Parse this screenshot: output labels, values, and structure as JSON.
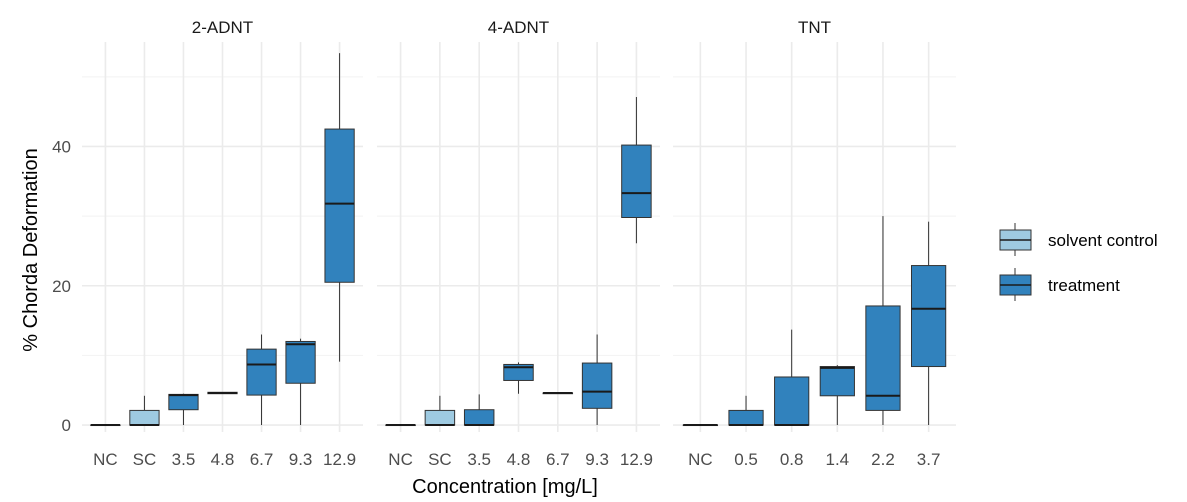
{
  "chart_data": {
    "type": "boxplot",
    "xlabel": "Concentration [mg/L]",
    "ylabel": "% Chorda Deformation",
    "ylim": [
      -1,
      55
    ],
    "yticks": [
      0,
      20,
      40
    ],
    "grid": true,
    "legend_position": "right",
    "colors": {
      "solvent control": "#9ecae1",
      "treatment": "#3182bd"
    },
    "legend": [
      {
        "label": "solvent control",
        "group": "solvent control"
      },
      {
        "label": "treatment",
        "group": "treatment"
      }
    ],
    "panels": [
      {
        "title": "2-ADNT",
        "boxes": [
          {
            "x": "NC",
            "group": "treatment",
            "min": 0,
            "q1": 0,
            "median": 0,
            "q3": 0,
            "max": 0
          },
          {
            "x": "SC",
            "group": "solvent control",
            "min": 0,
            "q1": 0,
            "median": 0,
            "q3": 2.1,
            "max": 4.2
          },
          {
            "x": "3.5",
            "group": "treatment",
            "min": 0,
            "q1": 2.2,
            "median": 4.3,
            "q3": 4.4,
            "max": 4.5
          },
          {
            "x": "4.8",
            "group": "treatment",
            "min": 4.5,
            "q1": 4.5,
            "median": 4.6,
            "q3": 4.7,
            "max": 4.7
          },
          {
            "x": "6.7",
            "group": "treatment",
            "min": 0,
            "q1": 4.3,
            "median": 8.7,
            "q3": 10.9,
            "max": 13.0
          },
          {
            "x": "9.3",
            "group": "treatment",
            "min": 0,
            "q1": 6.0,
            "median": 11.6,
            "q3": 12.0,
            "max": 12.4
          },
          {
            "x": "12.9",
            "group": "treatment",
            "min": 9.1,
            "q1": 20.5,
            "median": 31.8,
            "q3": 42.5,
            "max": 53.4
          }
        ]
      },
      {
        "title": "4-ADNT",
        "boxes": [
          {
            "x": "NC",
            "group": "treatment",
            "min": 0,
            "q1": 0,
            "median": 0,
            "q3": 0,
            "max": 0
          },
          {
            "x": "SC",
            "group": "solvent control",
            "min": 0,
            "q1": 0,
            "median": 0,
            "q3": 2.1,
            "max": 4.2
          },
          {
            "x": "3.5",
            "group": "treatment",
            "min": 0,
            "q1": 0,
            "median": 0,
            "q3": 2.2,
            "max": 4.4
          },
          {
            "x": "4.8",
            "group": "treatment",
            "min": 4.5,
            "q1": 6.4,
            "median": 8.3,
            "q3": 8.7,
            "max": 9.0
          },
          {
            "x": "6.7",
            "group": "treatment",
            "min": 4.5,
            "q1": 4.5,
            "median": 4.6,
            "q3": 4.6,
            "max": 4.7
          },
          {
            "x": "9.3",
            "group": "treatment",
            "min": 0,
            "q1": 2.4,
            "median": 4.8,
            "q3": 8.9,
            "max": 13.0
          },
          {
            "x": "12.9",
            "group": "treatment",
            "min": 26.1,
            "q1": 29.8,
            "median": 33.3,
            "q3": 40.2,
            "max": 47.1
          }
        ]
      },
      {
        "title": "TNT",
        "boxes": [
          {
            "x": "NC",
            "group": "treatment",
            "min": 0,
            "q1": 0,
            "median": 0,
            "q3": 0,
            "max": 0
          },
          {
            "x": "0.5",
            "group": "treatment",
            "min": 0,
            "q1": 0,
            "median": 0,
            "q3": 2.1,
            "max": 4.2
          },
          {
            "x": "0.8",
            "group": "treatment",
            "min": 0,
            "q1": 0,
            "median": 0,
            "q3": 6.9,
            "max": 13.7
          },
          {
            "x": "1.4",
            "group": "treatment",
            "min": 0,
            "q1": 4.2,
            "median": 8.2,
            "q3": 8.4,
            "max": 8.6
          },
          {
            "x": "2.2",
            "group": "treatment",
            "min": 0,
            "q1": 2.1,
            "median": 4.2,
            "q3": 17.1,
            "max": 30.0
          },
          {
            "x": "3.7",
            "group": "treatment",
            "min": 0,
            "q1": 8.4,
            "median": 16.7,
            "q3": 22.9,
            "max": 29.2
          }
        ]
      }
    ]
  }
}
